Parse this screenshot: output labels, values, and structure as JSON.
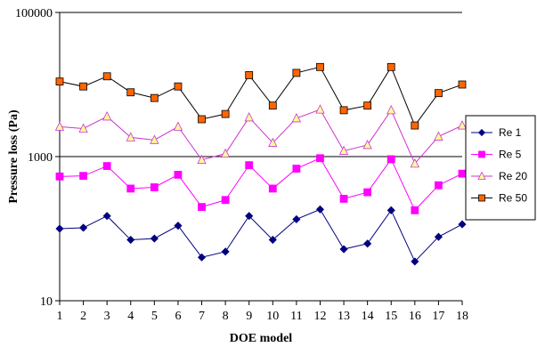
{
  "chart_data": {
    "type": "line",
    "xlabel": "DOE model",
    "ylabel": "Pressure loss (Pa)",
    "yscale": "log",
    "ylim": [
      10,
      100000
    ],
    "xlim": [
      1,
      18
    ],
    "y_ticks": [
      10,
      1000,
      100000
    ],
    "y_tick_labels": [
      "10",
      "1000",
      "100000"
    ],
    "x": [
      1,
      2,
      3,
      4,
      5,
      6,
      7,
      8,
      9,
      10,
      11,
      12,
      13,
      14,
      15,
      16,
      17,
      18
    ],
    "x_tick_labels": [
      "1",
      "2",
      "3",
      "4",
      "5",
      "6",
      "7",
      "8",
      "9",
      "10",
      "11",
      "12",
      "13",
      "14",
      "15",
      "16",
      "17",
      "18"
    ],
    "grid": "horizontal",
    "legend_position": "right",
    "series": [
      {
        "name": "Re 1",
        "color": "#000080",
        "marker": "diamond",
        "values": [
          100,
          103,
          150,
          70,
          73,
          110,
          40,
          48,
          150,
          70,
          135,
          185,
          52,
          62,
          180,
          35,
          77,
          115
        ]
      },
      {
        "name": "Re 5",
        "color": "#FF00FF",
        "marker": "square",
        "values": [
          530,
          540,
          740,
          360,
          375,
          560,
          200,
          250,
          760,
          360,
          680,
          950,
          260,
          320,
          920,
          180,
          400,
          580
        ]
      },
      {
        "name": "Re 20",
        "color": "#CC33CC",
        "marker": "triangle",
        "markerFill": "#FFFF99",
        "values": [
          2600,
          2450,
          3600,
          1850,
          1700,
          2600,
          900,
          1100,
          3500,
          1550,
          3400,
          4500,
          1200,
          1450,
          4400,
          800,
          1900,
          2700
        ]
      },
      {
        "name": "Re 50",
        "color": "#000000",
        "marker": "square",
        "markerFill": "#FF6600",
        "values": [
          11000,
          9400,
          13000,
          7800,
          6500,
          9400,
          3300,
          3900,
          13500,
          5100,
          14500,
          17500,
          4400,
          5100,
          17500,
          2700,
          7600,
          10000
        ]
      }
    ]
  }
}
